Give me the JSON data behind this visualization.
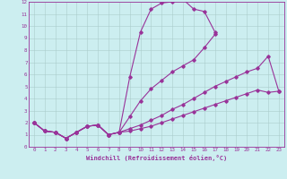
{
  "background_color": "#cceef0",
  "grid_color": "#aacccc",
  "line_color": "#993399",
  "xlabel": "Windchill (Refroidissement éolien,°C)",
  "xlim": [
    -0.5,
    23.5
  ],
  "ylim": [
    0,
    12
  ],
  "xtick_labels": [
    "0",
    "1",
    "2",
    "3",
    "4",
    "5",
    "6",
    "7",
    "8",
    "9",
    "10",
    "11",
    "12",
    "13",
    "14",
    "15",
    "16",
    "17",
    "18",
    "19",
    "20",
    "21",
    "22",
    "23"
  ],
  "ytick_labels": [
    "0",
    "1",
    "2",
    "3",
    "4",
    "5",
    "6",
    "7",
    "8",
    "9",
    "10",
    "11",
    "12"
  ],
  "curve1_x": [
    0,
    1,
    2,
    3,
    4,
    5,
    6,
    7,
    8,
    9,
    10,
    11,
    12,
    13,
    14,
    15,
    16,
    17
  ],
  "curve1_y": [
    2.0,
    1.3,
    1.2,
    0.7,
    1.2,
    1.7,
    1.8,
    1.0,
    1.2,
    5.8,
    9.5,
    11.4,
    11.9,
    12.0,
    12.2,
    11.4,
    11.2,
    9.5
  ],
  "curve2_x": [
    0,
    1,
    2,
    3,
    4,
    5,
    6,
    7,
    8,
    9,
    10,
    11,
    12,
    13,
    14,
    15,
    16,
    17,
    18,
    19,
    20,
    21,
    22,
    23
  ],
  "curve2_y": [
    2.0,
    1.3,
    1.2,
    0.7,
    1.2,
    1.7,
    1.8,
    1.0,
    1.2,
    2.5,
    3.8,
    4.8,
    5.5,
    6.2,
    6.7,
    7.2,
    8.2,
    9.3,
    null,
    null,
    null,
    null,
    null,
    null
  ],
  "curve3_x": [
    0,
    1,
    2,
    3,
    4,
    5,
    6,
    7,
    8,
    9,
    10,
    11,
    12,
    13,
    14,
    15,
    16,
    17,
    18,
    19,
    20,
    21,
    22,
    23
  ],
  "curve3_y": [
    2.0,
    1.3,
    1.2,
    0.7,
    1.2,
    1.7,
    1.8,
    1.0,
    1.2,
    1.5,
    1.8,
    2.2,
    2.6,
    3.1,
    3.5,
    4.0,
    4.5,
    5.0,
    5.4,
    5.8,
    6.2,
    6.5,
    7.5,
    4.6
  ],
  "curve4_x": [
    0,
    1,
    2,
    3,
    4,
    5,
    6,
    7,
    8,
    9,
    10,
    11,
    12,
    13,
    14,
    15,
    16,
    17,
    18,
    19,
    20,
    21,
    22,
    23
  ],
  "curve4_y": [
    2.0,
    1.3,
    1.2,
    0.7,
    1.2,
    1.7,
    1.8,
    1.0,
    1.2,
    1.3,
    1.5,
    1.7,
    2.0,
    2.3,
    2.6,
    2.9,
    3.2,
    3.5,
    3.8,
    4.1,
    4.4,
    4.7,
    4.5,
    4.6
  ]
}
